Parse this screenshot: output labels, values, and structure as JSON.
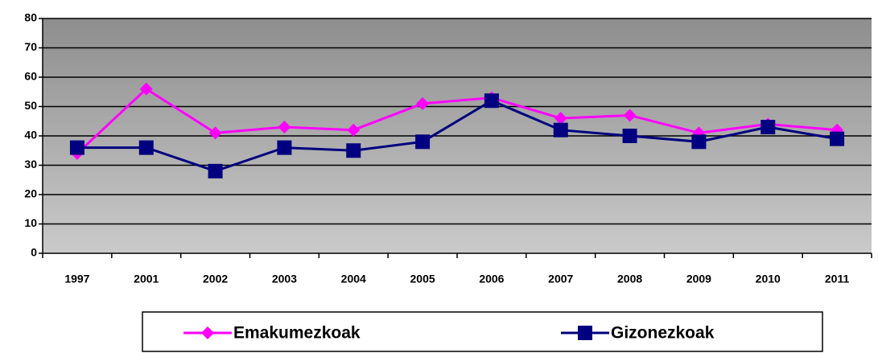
{
  "chart_data": {
    "type": "line",
    "categories": [
      "1997",
      "2001",
      "2002",
      "2003",
      "2004",
      "2005",
      "2006",
      "2007",
      "2008",
      "2009",
      "2010",
      "2011"
    ],
    "series": [
      {
        "name": "Emakumezkoak",
        "color": "#ff00ff",
        "marker": "diamond",
        "values": [
          34,
          56,
          41,
          43,
          42,
          51,
          53,
          46,
          47,
          41,
          44,
          42
        ]
      },
      {
        "name": "Gizonezkoak",
        "color": "#000080",
        "marker": "square",
        "values": [
          36,
          36,
          28,
          36,
          35,
          38,
          52,
          42,
          40,
          38,
          43,
          39
        ]
      }
    ],
    "ylim": [
      0,
      80
    ],
    "yticks": [
      0,
      10,
      20,
      30,
      40,
      50,
      60,
      70,
      80
    ],
    "grid": true,
    "legend": "bottom"
  }
}
